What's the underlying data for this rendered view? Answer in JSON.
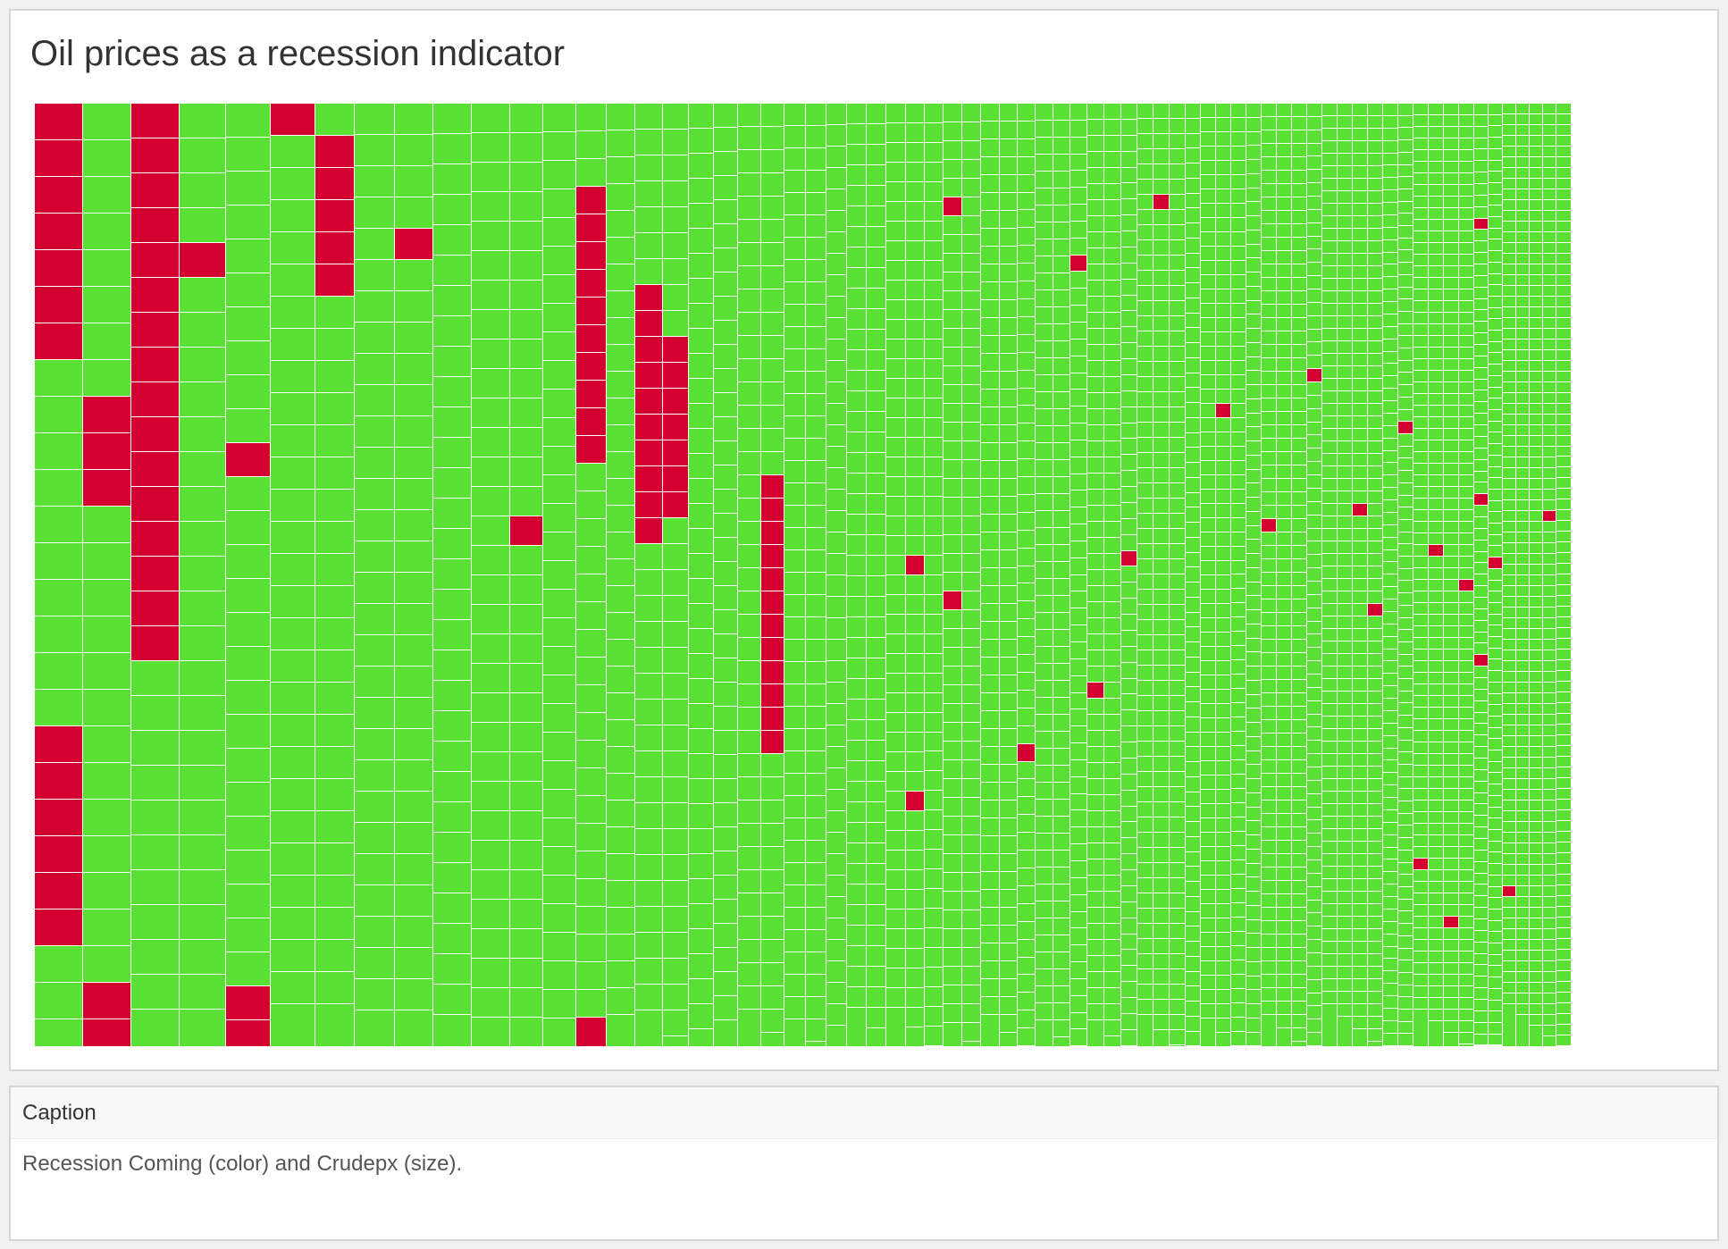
{
  "viz": {
    "title": "Oil prices as a recession indicator"
  },
  "caption": {
    "header": "Caption",
    "text": "Recession Coming (color) and Crudepx (size)."
  },
  "chart_data": {
    "type": "treemap",
    "title": "Oil prices as a recession indicator",
    "color_field": "Recession Coming",
    "size_field": "Crudepx",
    "colors": {
      "recession_coming": "#d50032",
      "no_recession": "#5ae035"
    },
    "columns": [
      {
        "weight": 63,
        "cells": 26,
        "red": [
          [
            0,
            6
          ],
          [
            17,
            22
          ]
        ]
      },
      {
        "weight": 63,
        "cells": 26,
        "red": [
          [
            8,
            10
          ],
          [
            24,
            25
          ]
        ]
      },
      {
        "weight": 63,
        "cells": 27,
        "red": [
          [
            0,
            15
          ]
        ]
      },
      {
        "weight": 61,
        "cells": 27,
        "red": [
          [
            4,
            4
          ]
        ]
      },
      {
        "weight": 58,
        "cells": 28,
        "red": [
          [
            10,
            10
          ],
          [
            26,
            27
          ]
        ]
      },
      {
        "weight": 58,
        "cells": 29,
        "red": [
          [
            0,
            0
          ]
        ]
      },
      {
        "weight": 52,
        "cells": 29,
        "red": [
          [
            1,
            5
          ]
        ]
      },
      {
        "weight": 53,
        "cells": 30,
        "red": []
      },
      {
        "weight": 50,
        "cells": 30,
        "red": [
          [
            4,
            4
          ]
        ]
      },
      {
        "weight": 50,
        "cells": 31,
        "red": []
      },
      {
        "weight": 50,
        "cells": 32,
        "red": []
      },
      {
        "weight": 43,
        "cells": 32,
        "red": [
          [
            14,
            14
          ]
        ]
      },
      {
        "weight": 43,
        "cells": 33,
        "red": []
      },
      {
        "weight": 40,
        "cells": 34,
        "red": [
          [
            3,
            12
          ],
          [
            33,
            33
          ]
        ]
      },
      {
        "weight": 37,
        "cells": 35,
        "red": []
      },
      {
        "weight": 36,
        "cells": 36,
        "red": [
          [
            7,
            16
          ]
        ]
      },
      {
        "weight": 34,
        "cells": 37,
        "red": [
          [
            9,
            15
          ]
        ]
      },
      {
        "weight": 33,
        "cells": 38,
        "red": []
      },
      {
        "weight": 32,
        "cells": 39,
        "red": []
      },
      {
        "weight": 30,
        "cells": 40,
        "red": []
      },
      {
        "weight": 30,
        "cells": 41,
        "red": [
          [
            16,
            27
          ]
        ]
      },
      {
        "weight": 28,
        "cells": 42,
        "red": []
      },
      {
        "weight": 27,
        "cells": 43,
        "red": []
      },
      {
        "weight": 27,
        "cells": 44,
        "red": []
      },
      {
        "weight": 26,
        "cells": 45,
        "red": []
      },
      {
        "weight": 26,
        "cells": 46,
        "red": []
      },
      {
        "weight": 26,
        "cells": 47,
        "red": []
      },
      {
        "weight": 25,
        "cells": 48,
        "red": [
          [
            23,
            23
          ],
          [
            35,
            35
          ]
        ]
      },
      {
        "weight": 25,
        "cells": 49,
        "red": []
      },
      {
        "weight": 24,
        "cells": 50,
        "red": [
          [
            5,
            5
          ],
          [
            26,
            26
          ]
        ]
      },
      {
        "weight": 24,
        "cells": 51,
        "red": []
      },
      {
        "weight": 24,
        "cells": 52,
        "red": []
      },
      {
        "weight": 23,
        "cells": 53,
        "red": []
      },
      {
        "weight": 23,
        "cells": 54,
        "red": [
          [
            36,
            36
          ]
        ]
      },
      {
        "weight": 23,
        "cells": 55,
        "red": []
      },
      {
        "weight": 22,
        "cells": 56,
        "red": []
      },
      {
        "weight": 22,
        "cells": 57,
        "red": [
          [
            9,
            9
          ]
        ]
      },
      {
        "weight": 22,
        "cells": 58,
        "red": [
          [
            36,
            36
          ]
        ]
      },
      {
        "weight": 22,
        "cells": 59,
        "red": []
      },
      {
        "weight": 21,
        "cells": 60,
        "red": [
          [
            28,
            28
          ]
        ]
      },
      {
        "weight": 21,
        "cells": 61,
        "red": []
      },
      {
        "weight": 21,
        "cells": 62,
        "red": [
          [
            6,
            6
          ]
        ]
      },
      {
        "weight": 21,
        "cells": 63,
        "red": []
      },
      {
        "weight": 20,
        "cells": 64,
        "red": []
      },
      {
        "weight": 20,
        "cells": 65,
        "red": []
      },
      {
        "weight": 20,
        "cells": 66,
        "red": [
          [
            21,
            21
          ]
        ]
      },
      {
        "weight": 20,
        "cells": 67,
        "red": []
      },
      {
        "weight": 20,
        "cells": 68,
        "red": []
      },
      {
        "weight": 20,
        "cells": 69,
        "red": [
          [
            31,
            31
          ]
        ]
      },
      {
        "weight": 20,
        "cells": 70,
        "red": []
      },
      {
        "weight": 20,
        "cells": 71,
        "red": []
      },
      {
        "weight": 20,
        "cells": 72,
        "red": [
          [
            20,
            20
          ]
        ]
      },
      {
        "weight": 20,
        "cells": 73,
        "red": []
      },
      {
        "weight": 20,
        "cells": 74,
        "red": []
      },
      {
        "weight": 20,
        "cells": 75,
        "red": [
          [
            32,
            32
          ]
        ]
      },
      {
        "weight": 20,
        "cells": 76,
        "red": [
          [
            40,
            40
          ]
        ]
      },
      {
        "weight": 20,
        "cells": 77,
        "red": []
      },
      {
        "weight": 20,
        "cells": 78,
        "red": [
          [
            26,
            26
          ]
        ]
      },
      {
        "weight": 20,
        "cells": 79,
        "red": [
          [
            65,
            65
          ]
        ]
      },
      {
        "weight": 20,
        "cells": 80,
        "red": [
          [
            38,
            38
          ]
        ]
      },
      {
        "weight": 20,
        "cells": 81,
        "red": [
          [
            70,
            70
          ]
        ]
      },
      {
        "weight": 20,
        "cells": 82,
        "red": [
          [
            41,
            41
          ]
        ]
      },
      {
        "weight": 19,
        "cells": 83,
        "red": [
          [
            10,
            10
          ],
          [
            34,
            34
          ],
          [
            48,
            48
          ]
        ]
      },
      {
        "weight": 19,
        "cells": 84,
        "red": [
          [
            40,
            40
          ]
        ]
      },
      {
        "weight": 18,
        "cells": 85,
        "red": [
          [
            73,
            73
          ]
        ]
      },
      {
        "weight": 18,
        "cells": 86,
        "red": []
      },
      {
        "weight": 18,
        "cells": 87,
        "red": []
      },
      {
        "weight": 18,
        "cells": 88,
        "red": [
          [
            38,
            38
          ]
        ]
      },
      {
        "weight": 18,
        "cells": 89,
        "red": []
      }
    ]
  }
}
